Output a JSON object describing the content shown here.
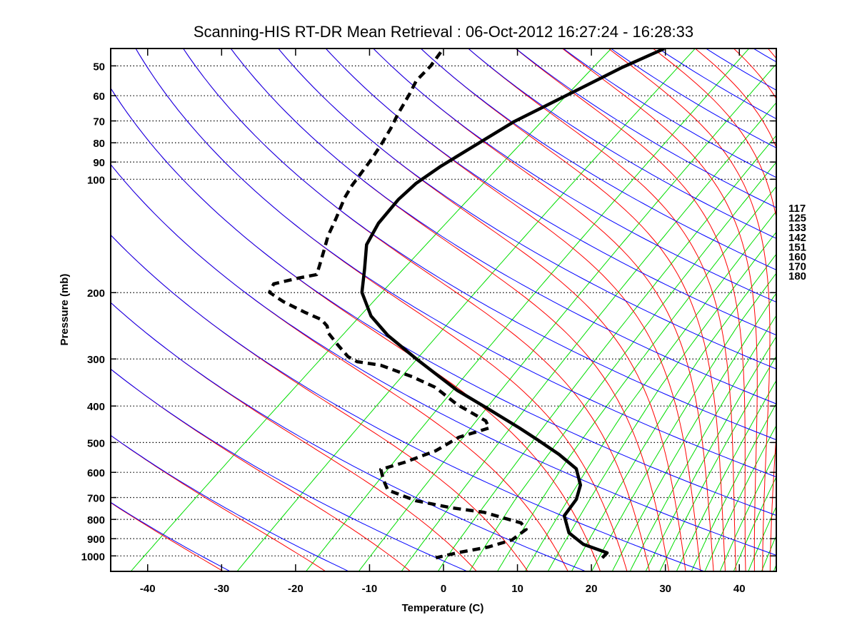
{
  "chart_data": {
    "type": "line",
    "subtype": "skew-T log-P diagram",
    "title": "Scanning-HIS RT-DR Mean Retrieval : 06-Oct-2012 16:27:24 - 16:28:33",
    "xlabel": "Temperature (C)",
    "ylabel": "Pressure (mb)",
    "xlim": [
      -45,
      45
    ],
    "ylim": [
      1100,
      45
    ],
    "yscale": "log",
    "skew_degC_per_decade": 65,
    "x_ticks": [
      "-40",
      "-30",
      "-20",
      "-10",
      "0",
      "10",
      "20",
      "30",
      "40"
    ],
    "y_ticks": [
      "50",
      "60",
      "70",
      "80",
      "90",
      "100",
      "200",
      "300",
      "400",
      "500",
      "600",
      "700",
      "800",
      "900",
      "1000"
    ],
    "grid": "horizontal dotted at pressure ticks",
    "right_labels": [
      "117",
      "125",
      "133",
      "142",
      "151",
      "160",
      "170",
      "180"
    ],
    "background": {
      "dry_adiabat_theta_K": {
        "start": 224.8,
        "step": 15.6,
        "count": 24,
        "color": "#0000ff"
      },
      "moist_adiabat_thetae_K": {
        "start": 224.8,
        "step": 15.6,
        "count": 24,
        "color": "#ff0000"
      },
      "mixing_ratio_gkg": [
        0.076,
        0.35,
        0.86,
        1.64,
        2.7,
        4,
        5.4,
        7,
        9,
        11,
        13.5,
        16,
        19,
        22,
        25,
        28,
        32,
        36,
        40,
        45,
        50,
        56,
        62,
        68,
        75
      ],
      "mixing_ratio_color": "#00dd00"
    },
    "series": [
      {
        "name": "Temperature",
        "style": "solid",
        "color": "#000000",
        "pressure": [
          45.0,
          50.6,
          59.0,
          70.2,
          82.4,
          92.3,
          102.6,
          113.3,
          130.9,
          149.2,
          173.0,
          199.7,
          230.7,
          259.6,
          299.7,
          363,
          406.6,
          457.5,
          492.7,
          537.6,
          586.8,
          648.6,
          707.8,
          782.3,
          868.8,
          931.4,
          981.5,
          1011.8
        ],
        "temperature": [
          -57.7,
          -60.2,
          -62.6,
          -65.4,
          -66.7,
          -67.6,
          -68.0,
          -67.6,
          -66.2,
          -64.1,
          -60.2,
          -56.5,
          -51.2,
          -45.6,
          -37.7,
          -26.8,
          -19.4,
          -11.8,
          -7.2,
          -1.9,
          2.9,
          6.3,
          8.2,
          9.4,
          13.0,
          16.9,
          21.6,
          21.8
        ]
      },
      {
        "name": "Dewpoint",
        "style": "dashed",
        "color": "#000000",
        "pressure": [
          46.0,
          50.0,
          54.7,
          59.4,
          67.2,
          73.3,
          81.0,
          88.4,
          103.9,
          111.8,
          127.5,
          141.0,
          155.8,
          170.0,
          179.1,
          183.0,
          189.6,
          199.7,
          211.4,
          225.8,
          235.8,
          245.3,
          256.2,
          274.7,
          295.8,
          305.0,
          311.7,
          334.2,
          356.8,
          396.2,
          438.0,
          457.5,
          484.2,
          526.0,
          564.0,
          589.4,
          629.0,
          668.6,
          714.0,
          745.8,
          765.6,
          817.6,
          850.4,
          907.4,
          947.8,
          981.5,
          1011.8
        ],
        "temperature": [
          -87.3,
          -86.3,
          -85.7,
          -84.3,
          -82.4,
          -80.9,
          -79.4,
          -78.2,
          -76.3,
          -75.2,
          -72.7,
          -70.9,
          -68.7,
          -66.8,
          -65.7,
          -67.6,
          -69.9,
          -69.0,
          -65.5,
          -60.7,
          -57.3,
          -55.4,
          -54.0,
          -50.8,
          -47.3,
          -45.2,
          -41.4,
          -35.2,
          -30.2,
          -24.3,
          -17.6,
          -15.9,
          -18.4,
          -19.2,
          -21.4,
          -23.4,
          -21.2,
          -18.9,
          -13.2,
          -7.1,
          -2.1,
          4.8,
          6.6,
          6.5,
          4.5,
          1.3,
          -0.7
        ]
      }
    ]
  }
}
